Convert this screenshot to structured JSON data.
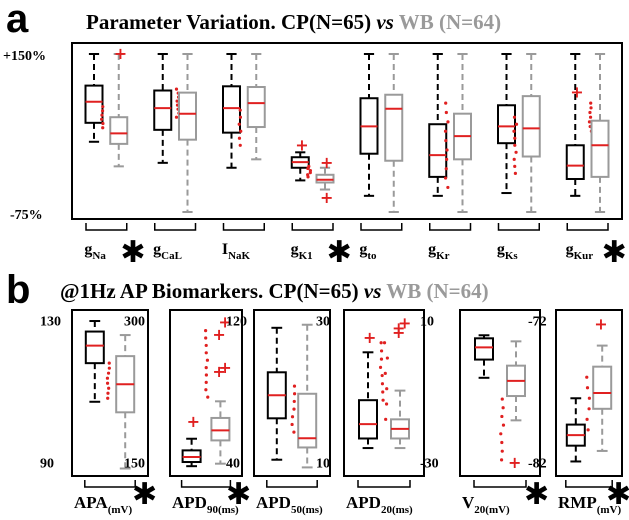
{
  "panel_a": {
    "letter": "a",
    "title_main": "Parameter Variation. CP(N=65) ",
    "title_vs": "vs",
    "title_gray": " WB (N=64)",
    "y_ticks": [
      "+150%",
      "-75%"
    ],
    "categories": [
      {
        "base": "g",
        "sub": "Na",
        "star": true
      },
      {
        "base": "g",
        "sub": "CaL",
        "star": false
      },
      {
        "base": "I",
        "sub": "NaK",
        "star": false
      },
      {
        "base": "g",
        "sub": "K1",
        "star": true
      },
      {
        "base": "g",
        "sub": "to",
        "star": false
      },
      {
        "base": "g",
        "sub": "Kr",
        "star": false
      },
      {
        "base": "g",
        "sub": "Ks",
        "star": false
      },
      {
        "base": "g",
        "sub": "Kur",
        "star": true
      }
    ]
  },
  "panel_b": {
    "letter": "b",
    "title_main": "@1Hz AP Biomarkers. CP(N=65) ",
    "title_vs": "vs",
    "title_gray": " WB (N=64)",
    "subplots": [
      {
        "base": "APA",
        "sub": "(mV)",
        "ticks": [
          "130",
          "90"
        ],
        "star": true
      },
      {
        "base": "APD",
        "sub": "90(ms)",
        "ticks": [
          "300",
          "150"
        ],
        "star": true
      },
      {
        "base": "APD",
        "sub": "50(ms)",
        "ticks": [
          "120",
          "40"
        ],
        "star": false
      },
      {
        "base": "APD",
        "sub": "20(ms)",
        "ticks": [
          "30",
          "10"
        ],
        "star": false
      },
      {
        "base": "V",
        "sub": "20(mV)",
        "ticks": [
          "10",
          "-30"
        ],
        "star": true
      },
      {
        "base": "RMP",
        "sub": "(mV)",
        "ticks": [
          "-72",
          "-82"
        ],
        "star": true
      }
    ]
  },
  "chart_data": [
    {
      "type": "box",
      "title": "Parameter Variation. CP(N=65) vs WB (N=64)",
      "ylim": [
        -75,
        150
      ],
      "y_unit": "%",
      "categories": [
        "gNa",
        "gCaL",
        "INaK",
        "gK1",
        "gto",
        "gKr",
        "gKs",
        "gKur"
      ],
      "series": [
        {
          "name": "CP(N=65)",
          "color": "#000000",
          "median_color": "#e02020",
          "boxes": [
            {
              "min": 25,
              "q1": 52,
              "median": 82,
              "q3": 105,
              "max": 150
            },
            {
              "min": -5,
              "q1": 42,
              "median": 73,
              "q3": 98,
              "max": 150
            },
            {
              "min": -12,
              "q1": 38,
              "median": 73,
              "q3": 104,
              "max": 150
            },
            {
              "min": -30,
              "q1": -12,
              "median": -4,
              "q3": 3,
              "max": 10
            },
            {
              "min": -52,
              "q1": 8,
              "median": 47,
              "q3": 87,
              "max": 150
            },
            {
              "min": -52,
              "q1": -25,
              "median": 6,
              "q3": 50,
              "max": 150
            },
            {
              "min": -48,
              "q1": 23,
              "median": 47,
              "q3": 77,
              "max": 150
            },
            {
              "min": -52,
              "q1": -28,
              "median": -9,
              "q3": 20,
              "max": 150
            }
          ]
        },
        {
          "name": "WB (N=64)",
          "color": "#9a9a9a",
          "median_color": "#e02020",
          "boxes": [
            {
              "min": -10,
              "q1": 22,
              "median": 37,
              "q3": 60,
              "max": 150
            },
            {
              "min": -75,
              "q1": 28,
              "median": 65,
              "q3": 95,
              "max": 150
            },
            {
              "min": 0,
              "q1": 46,
              "median": 80,
              "q3": 103,
              "max": 150
            },
            {
              "min": -43,
              "q1": -33,
              "median": -29,
              "q3": -22,
              "max": -12
            },
            {
              "min": -75,
              "q1": -2,
              "median": 72,
              "q3": 92,
              "max": 150
            },
            {
              "min": -75,
              "q1": 0,
              "median": 33,
              "q3": 65,
              "max": 150
            },
            {
              "min": -75,
              "q1": 4,
              "median": 44,
              "q3": 90,
              "max": 150
            },
            {
              "min": -75,
              "q1": -25,
              "median": 20,
              "q3": 55,
              "max": 150
            }
          ]
        }
      ]
    },
    {
      "type": "box",
      "title": "@1Hz AP Biomarkers. CP(N=65) vs WB (N=64)",
      "subplots": [
        {
          "name": "APA(mV)",
          "ylim": [
            87,
            132
          ],
          "CP": {
            "min": 107,
            "q1": 118,
            "median": 123,
            "q3": 127,
            "max": 130
          },
          "WB": {
            "min": 88,
            "q1": 104,
            "median": 112,
            "q3": 120,
            "max": 126
          }
        },
        {
          "name": "APD90(ms)",
          "ylim": [
            140,
            330
          ],
          "CP": {
            "min": 147,
            "q1": 152,
            "median": 158,
            "q3": 166,
            "max": 180
          },
          "WB": {
            "min": 150,
            "q1": 178,
            "median": 190,
            "q3": 205,
            "max": 225
          }
        },
        {
          "name": "APD50(ms)",
          "ylim": [
            22,
            125
          ],
          "CP": {
            "min": 30,
            "q1": 57,
            "median": 72,
            "q3": 87,
            "max": 116
          },
          "WB": {
            "min": 25,
            "q1": 38,
            "median": 44,
            "q3": 73,
            "max": 118
          }
        },
        {
          "name": "APD20(ms)",
          "ylim": [
            3,
            36
          ],
          "CP": {
            "min": 8,
            "q1": 10,
            "median": 13,
            "q3": 18,
            "max": 28
          },
          "WB": {
            "min": 8,
            "q1": 10,
            "median": 12,
            "q3": 14,
            "max": 20
          }
        },
        {
          "name": "V20(mV)",
          "ylim": [
            -32,
            20
          ],
          "CP": {
            "min": -1,
            "q1": 5,
            "median": 9,
            "q3": 12,
            "max": 13
          },
          "WB": {
            "min": -15,
            "q1": -7,
            "median": -2,
            "q3": 3,
            "max": 11
          }
        },
        {
          "name": "RMP(mV)",
          "ylim": [
            -83,
            -68
          ],
          "CP": {
            "min": -82,
            "q1": -80.5,
            "median": -79.5,
            "q3": -78.5,
            "max": -76
          },
          "WB": {
            "min": -81,
            "q1": -77,
            "median": -75.5,
            "q3": -73,
            "max": -71
          }
        }
      ]
    }
  ]
}
